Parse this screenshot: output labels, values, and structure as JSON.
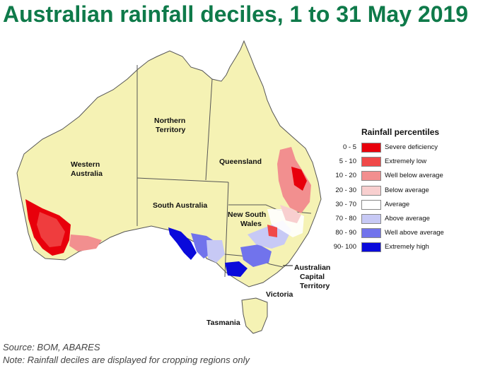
{
  "title": "Australian rainfall deciles, 1 to 31 May 2019",
  "regions": {
    "wa": "Western\nAustralia",
    "nt": "Northern\nTerritory",
    "qld": "Queensland",
    "sa": "South Australia",
    "nsw": "New South\nWales",
    "act": "Australian\nCapital\nTerritory",
    "vic": "Victoria",
    "tas": "Tasmania"
  },
  "legend": {
    "title": "Rainfall percentiles",
    "items": [
      {
        "range": "0 - 5",
        "label": "Severe deficiency",
        "color": "#e8000b"
      },
      {
        "range": "5 - 10",
        "label": "Extremely low",
        "color": "#f04848"
      },
      {
        "range": "10 - 20",
        "label": "Well below average",
        "color": "#f28f8f"
      },
      {
        "range": "20 - 30",
        "label": "Below average",
        "color": "#f8cfcf"
      },
      {
        "range": "30 - 70",
        "label": "Average",
        "color": "#ffffff"
      },
      {
        "range": "70 - 80",
        "label": "Above average",
        "color": "#c7c9f5"
      },
      {
        "range": "80 - 90",
        "label": "Well above average",
        "color": "#7173ec"
      },
      {
        "range": "90- 100",
        "label": "Extremely high",
        "color": "#0a0adb"
      }
    ]
  },
  "colors": {
    "land": "#f5f2b4",
    "title": "#0f7a4a",
    "border": "#555555"
  },
  "notes": {
    "source": "Source: BOM, ABARES",
    "note": "Note: Rainfall deciles are displayed for cropping regions only"
  }
}
